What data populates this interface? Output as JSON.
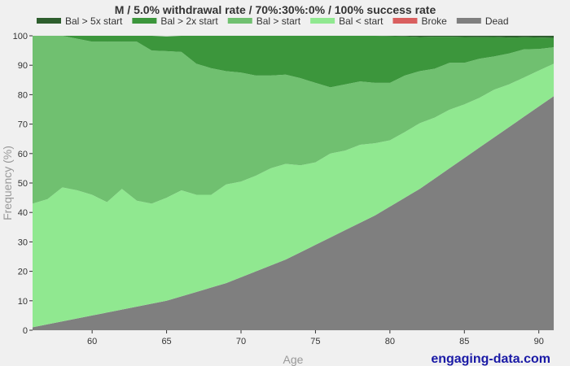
{
  "chart_data": {
    "type": "area",
    "stacked": true,
    "title": "M / 5.0% withdrawal rate / 70%:30%:0% / 100% success rate",
    "xlabel": "Age",
    "ylabel": "Frequency (%)",
    "xlim": [
      56,
      91
    ],
    "ylim": [
      0,
      100
    ],
    "x_ticks": [
      60,
      65,
      70,
      75,
      80,
      85,
      90
    ],
    "y_ticks": [
      0,
      10,
      20,
      30,
      40,
      50,
      60,
      70,
      80,
      90,
      100
    ],
    "grid": true,
    "legend_position": "top",
    "x": [
      56,
      57,
      58,
      59,
      60,
      61,
      62,
      63,
      64,
      65,
      66,
      67,
      68,
      69,
      70,
      71,
      72,
      73,
      74,
      75,
      76,
      77,
      78,
      79,
      80,
      81,
      82,
      83,
      84,
      85,
      86,
      87,
      88,
      89,
      90,
      91
    ],
    "series": [
      {
        "name": "Dead",
        "color": "#7f7f7f",
        "values": [
          1,
          2,
          3,
          4,
          5,
          6,
          7,
          8,
          9,
          10,
          11.5,
          13,
          14.5,
          16,
          18,
          20,
          22,
          24,
          26.5,
          29,
          31.5,
          34,
          36.5,
          39,
          42,
          45,
          48,
          51.5,
          55,
          58.5,
          62,
          65.5,
          69,
          72.5,
          76,
          79.5
        ]
      },
      {
        "name": "Bal < start",
        "color": "#90e890",
        "values": [
          42,
          42.5,
          45.5,
          43.5,
          41,
          37.5,
          41,
          36,
          34,
          35,
          36,
          33,
          31.5,
          33.5,
          32.5,
          32.5,
          33,
          32.5,
          29.5,
          28,
          28.5,
          27,
          26.5,
          24.5,
          22.5,
          22.3,
          22.3,
          20.7,
          19.9,
          18.2,
          16.9,
          16.2,
          14.5,
          13.3,
          12.2,
          11
        ]
      },
      {
        "name": "Bal > start",
        "color": "#70c070",
        "values": [
          57,
          55.5,
          51.5,
          51.5,
          52,
          54.5,
          50,
          54,
          52,
          49.8,
          47,
          44.5,
          43,
          38.5,
          37,
          34,
          31.5,
          30.3,
          29.6,
          27,
          22.5,
          22.5,
          21.5,
          20.5,
          19.5,
          19.2,
          17.7,
          16.6,
          15.9,
          14.1,
          13.3,
          11.3,
          10.5,
          9.6,
          7.3,
          5.6
        ]
      },
      {
        "name": "Bal > 2x start",
        "color": "#3c963c",
        "values": [
          0,
          0,
          0,
          1,
          2,
          2,
          2,
          2,
          5,
          5,
          5.5,
          9.5,
          11,
          12,
          12.5,
          13.5,
          13.5,
          13.2,
          14.4,
          16,
          17.5,
          16.5,
          15.5,
          16,
          15.9,
          13.3,
          11.6,
          10.9,
          8.9,
          8.8,
          7.3,
          6.6,
          5.4,
          4.1,
          3.9,
          3.2
        ]
      },
      {
        "name": "Bal > 5x start",
        "color": "#2e5e2e",
        "values": [
          0,
          0,
          0,
          0,
          0,
          0,
          0,
          0,
          0,
          0,
          0,
          0,
          0,
          0,
          0,
          0,
          0,
          0,
          0,
          0,
          0,
          0,
          0,
          0,
          0.1,
          0.2,
          0.4,
          0.3,
          0.3,
          0.4,
          0.5,
          0.4,
          0.6,
          0.5,
          0.6,
          0.7
        ]
      },
      {
        "name": "Broke",
        "color": "#d95f5f",
        "values": [
          0,
          0,
          0,
          0,
          0,
          0,
          0,
          0,
          0,
          0,
          0,
          0,
          0,
          0,
          0,
          0,
          0,
          0,
          0,
          0,
          0,
          0,
          0,
          0,
          0,
          0,
          0,
          0,
          0,
          0,
          0,
          0,
          0,
          0,
          0,
          0
        ]
      }
    ],
    "legend_order": [
      "Bal > 5x start",
      "Bal > 2x start",
      "Bal > start",
      "Bal < start",
      "Broke",
      "Dead"
    ]
  },
  "watermark": "engaging-data.com"
}
